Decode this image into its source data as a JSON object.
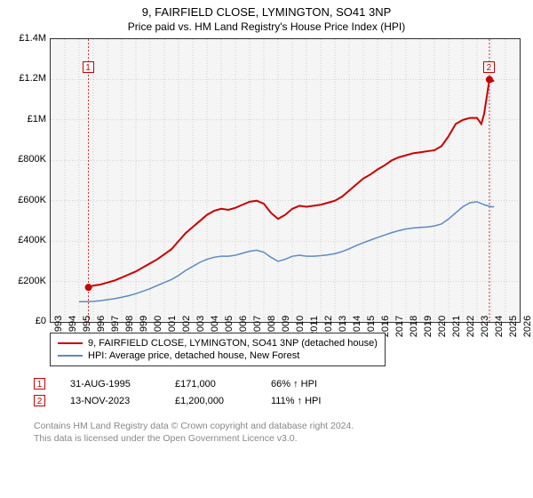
{
  "title": "9, FAIRFIELD CLOSE, LYMINGTON, SO41 3NP",
  "subtitle": "Price paid vs. HM Land Registry's House Price Index (HPI)",
  "chart": {
    "type": "line",
    "background_color": "#f5f5f5",
    "grid_color": "#aaaaaa",
    "plot_border_color": "#333333",
    "ylim": [
      0,
      1400000
    ],
    "ytick_step": 200000,
    "ytick_labels": [
      "£0",
      "£200K",
      "£400K",
      "£600K",
      "£800K",
      "£1M",
      "£1.2M",
      "£1.4M"
    ],
    "xlim": [
      1993,
      2026
    ],
    "xtick_step": 1,
    "xtick_labels": [
      "1993",
      "1994",
      "1995",
      "1996",
      "1997",
      "1998",
      "1999",
      "2000",
      "2001",
      "2002",
      "2003",
      "2004",
      "2005",
      "2006",
      "2007",
      "2008",
      "2009",
      "2010",
      "2011",
      "2012",
      "2013",
      "2014",
      "2015",
      "2016",
      "2017",
      "2018",
      "2019",
      "2020",
      "2021",
      "2022",
      "2023",
      "2024",
      "2025",
      "2026"
    ],
    "series": [
      {
        "name": "price_paid",
        "color": "#cc0000",
        "line_width": 2,
        "points": [
          [
            1995.66,
            171000
          ],
          [
            1996,
            180000
          ],
          [
            1996.5,
            185000
          ],
          [
            1997,
            195000
          ],
          [
            1997.5,
            205000
          ],
          [
            1998,
            220000
          ],
          [
            1998.5,
            235000
          ],
          [
            1999,
            250000
          ],
          [
            1999.5,
            270000
          ],
          [
            2000,
            290000
          ],
          [
            2000.5,
            310000
          ],
          [
            2001,
            335000
          ],
          [
            2001.5,
            360000
          ],
          [
            2002,
            400000
          ],
          [
            2002.5,
            440000
          ],
          [
            2003,
            470000
          ],
          [
            2003.5,
            500000
          ],
          [
            2004,
            530000
          ],
          [
            2004.5,
            550000
          ],
          [
            2005,
            560000
          ],
          [
            2005.5,
            555000
          ],
          [
            2006,
            565000
          ],
          [
            2006.5,
            580000
          ],
          [
            2007,
            595000
          ],
          [
            2007.5,
            600000
          ],
          [
            2008,
            585000
          ],
          [
            2008.5,
            540000
          ],
          [
            2009,
            510000
          ],
          [
            2009.5,
            530000
          ],
          [
            2010,
            560000
          ],
          [
            2010.5,
            575000
          ],
          [
            2011,
            570000
          ],
          [
            2011.5,
            575000
          ],
          [
            2012,
            580000
          ],
          [
            2012.5,
            590000
          ],
          [
            2013,
            600000
          ],
          [
            2013.5,
            620000
          ],
          [
            2014,
            650000
          ],
          [
            2014.5,
            680000
          ],
          [
            2015,
            710000
          ],
          [
            2015.5,
            730000
          ],
          [
            2016,
            755000
          ],
          [
            2016.5,
            775000
          ],
          [
            2017,
            800000
          ],
          [
            2017.5,
            815000
          ],
          [
            2018,
            825000
          ],
          [
            2018.5,
            835000
          ],
          [
            2019,
            840000
          ],
          [
            2019.5,
            845000
          ],
          [
            2020,
            850000
          ],
          [
            2020.5,
            870000
          ],
          [
            2021,
            920000
          ],
          [
            2021.5,
            980000
          ],
          [
            2022,
            1000000
          ],
          [
            2022.5,
            1010000
          ],
          [
            2023,
            1010000
          ],
          [
            2023.3,
            980000
          ],
          [
            2023.5,
            1030000
          ],
          [
            2023.87,
            1200000
          ],
          [
            2024,
            1190000
          ],
          [
            2024.2,
            1195000
          ]
        ]
      },
      {
        "name": "hpi",
        "color": "#5b8bc4",
        "line_width": 1.5,
        "points": [
          [
            1995,
            100000
          ],
          [
            1995.5,
            100000
          ],
          [
            1996,
            102000
          ],
          [
            1996.5,
            105000
          ],
          [
            1997,
            110000
          ],
          [
            1997.5,
            115000
          ],
          [
            1998,
            122000
          ],
          [
            1998.5,
            130000
          ],
          [
            1999,
            140000
          ],
          [
            1999.5,
            152000
          ],
          [
            2000,
            165000
          ],
          [
            2000.5,
            180000
          ],
          [
            2001,
            195000
          ],
          [
            2001.5,
            210000
          ],
          [
            2002,
            230000
          ],
          [
            2002.5,
            255000
          ],
          [
            2003,
            275000
          ],
          [
            2003.5,
            295000
          ],
          [
            2004,
            310000
          ],
          [
            2004.5,
            320000
          ],
          [
            2005,
            325000
          ],
          [
            2005.5,
            325000
          ],
          [
            2006,
            330000
          ],
          [
            2006.5,
            340000
          ],
          [
            2007,
            350000
          ],
          [
            2007.5,
            355000
          ],
          [
            2008,
            345000
          ],
          [
            2008.5,
            320000
          ],
          [
            2009,
            300000
          ],
          [
            2009.5,
            310000
          ],
          [
            2010,
            325000
          ],
          [
            2010.5,
            330000
          ],
          [
            2011,
            325000
          ],
          [
            2011.5,
            325000
          ],
          [
            2012,
            328000
          ],
          [
            2012.5,
            332000
          ],
          [
            2013,
            338000
          ],
          [
            2013.5,
            348000
          ],
          [
            2014,
            362000
          ],
          [
            2014.5,
            378000
          ],
          [
            2015,
            392000
          ],
          [
            2015.5,
            405000
          ],
          [
            2016,
            418000
          ],
          [
            2016.5,
            430000
          ],
          [
            2017,
            442000
          ],
          [
            2017.5,
            452000
          ],
          [
            2018,
            460000
          ],
          [
            2018.5,
            465000
          ],
          [
            2019,
            468000
          ],
          [
            2019.5,
            470000
          ],
          [
            2020,
            475000
          ],
          [
            2020.5,
            485000
          ],
          [
            2021,
            510000
          ],
          [
            2021.5,
            540000
          ],
          [
            2022,
            570000
          ],
          [
            2022.5,
            590000
          ],
          [
            2023,
            595000
          ],
          [
            2023.5,
            580000
          ],
          [
            2024,
            570000
          ],
          [
            2024.2,
            570000
          ]
        ]
      }
    ],
    "markers": [
      {
        "label": "1",
        "x": 1995.66,
        "y": 171000,
        "color": "#cc0000",
        "label_top_y": 1260000
      },
      {
        "label": "2",
        "x": 2023.87,
        "y": 1200000,
        "color": "#cc0000",
        "label_top_y": 1260000
      }
    ]
  },
  "legend": {
    "items": [
      {
        "color": "#cc0000",
        "text": "9, FAIRFIELD CLOSE, LYMINGTON, SO41 3NP (detached house)"
      },
      {
        "color": "#5b8bc4",
        "text": "HPI: Average price, detached house, New Forest"
      }
    ]
  },
  "transactions": [
    {
      "marker": "1",
      "marker_color": "#cc0000",
      "date": "31-AUG-1995",
      "price": "£171,000",
      "vs_hpi": "66% ↑ HPI"
    },
    {
      "marker": "2",
      "marker_color": "#cc0000",
      "date": "13-NOV-2023",
      "price": "£1,200,000",
      "vs_hpi": "111% ↑ HPI"
    }
  ],
  "footer": {
    "line1": "Contains HM Land Registry data © Crown copyright and database right 2024.",
    "line2": "This data is licensed under the Open Government Licence v3.0."
  }
}
